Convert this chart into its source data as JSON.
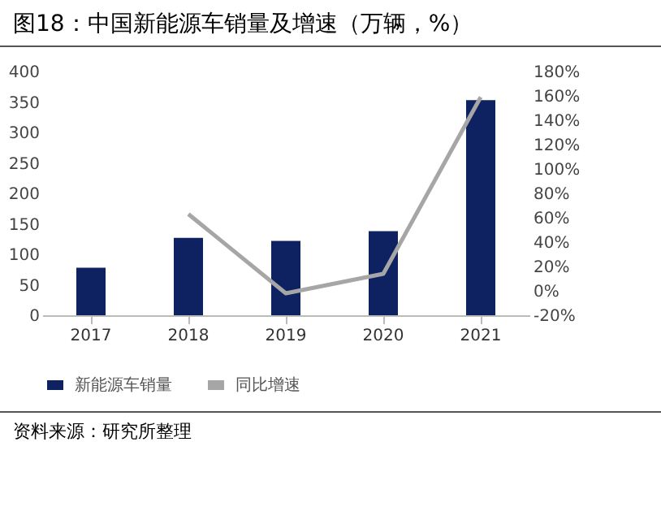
{
  "chart_data": {
    "type": "bar",
    "title": "图18：中国新能源车销量及增速（万辆，%）",
    "categories": [
      "2017",
      "2018",
      "2019",
      "2020",
      "2021"
    ],
    "series": [
      {
        "name": "新能源车销量",
        "color": "#0e2160",
        "values": [
          78,
          127,
          122,
          138,
          353
        ]
      },
      {
        "name": "同比增速",
        "color": "#a6a6a6",
        "type": "line",
        "axis": "y2",
        "values": [
          null,
          63,
          -2,
          14,
          159
        ]
      }
    ],
    "ylim": [
      0,
      400
    ],
    "yticks": [
      0,
      50,
      100,
      150,
      200,
      250,
      300,
      350,
      400
    ],
    "y2lim": [
      -20,
      180
    ],
    "y2ticks": [
      {
        "value": -20,
        "label": "-20%"
      },
      {
        "value": 0,
        "label": "0%"
      },
      {
        "value": 20,
        "label": "20%"
      },
      {
        "value": 40,
        "label": "40%"
      },
      {
        "value": 60,
        "label": "60%"
      },
      {
        "value": 80,
        "label": "80%"
      },
      {
        "value": 100,
        "label": "100%"
      },
      {
        "value": 120,
        "label": "120%"
      },
      {
        "value": 140,
        "label": "140%"
      },
      {
        "value": 160,
        "label": "160%"
      },
      {
        "value": 180,
        "label": "180%"
      }
    ],
    "legend": "bottom",
    "grid": false,
    "annotations": [
      "资料来源：研究所整理"
    ]
  }
}
